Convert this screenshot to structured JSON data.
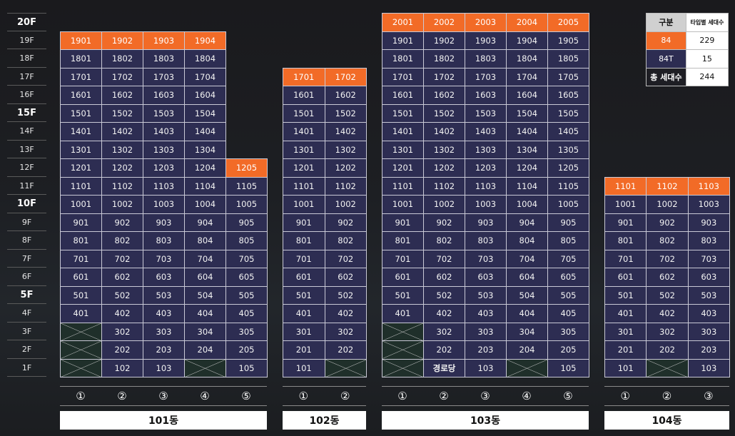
{
  "floors": [
    "20F",
    "19F",
    "18F",
    "17F",
    "16F",
    "15F",
    "14F",
    "13F",
    "12F",
    "11F",
    "10F",
    "9F",
    "8F",
    "7F",
    "6F",
    "5F",
    "4F",
    "3F",
    "2F",
    "1F"
  ],
  "major_floors": [
    "20F",
    "15F",
    "10F",
    "5F"
  ],
  "buildings": [
    {
      "id": "101",
      "name": "101동",
      "lines": [
        "①",
        "②",
        "③",
        "④",
        "⑤"
      ],
      "rows": [
        [
          [
            "1901",
            "top"
          ],
          [
            "1902",
            "top"
          ],
          [
            "1903",
            "top"
          ],
          [
            "1904",
            "top"
          ],
          null
        ],
        [
          [
            "1801"
          ],
          [
            "1802"
          ],
          [
            "1803"
          ],
          [
            "1804"
          ],
          null
        ],
        [
          [
            "1701"
          ],
          [
            "1702"
          ],
          [
            "1703"
          ],
          [
            "1704"
          ],
          null
        ],
        [
          [
            "1601"
          ],
          [
            "1602"
          ],
          [
            "1603"
          ],
          [
            "1604"
          ],
          null
        ],
        [
          [
            "1501"
          ],
          [
            "1502"
          ],
          [
            "1503"
          ],
          [
            "1504"
          ],
          null
        ],
        [
          [
            "1401"
          ],
          [
            "1402"
          ],
          [
            "1403"
          ],
          [
            "1404"
          ],
          null
        ],
        [
          [
            "1301"
          ],
          [
            "1302"
          ],
          [
            "1303"
          ],
          [
            "1304"
          ],
          null
        ],
        [
          [
            "1201"
          ],
          [
            "1202"
          ],
          [
            "1203"
          ],
          [
            "1204"
          ],
          [
            "1205",
            "top"
          ]
        ],
        [
          [
            "1101"
          ],
          [
            "1102"
          ],
          [
            "1103"
          ],
          [
            "1104"
          ],
          [
            "1105"
          ]
        ],
        [
          [
            "1001"
          ],
          [
            "1002"
          ],
          [
            "1003"
          ],
          [
            "1004"
          ],
          [
            "1005"
          ]
        ],
        [
          [
            "901"
          ],
          [
            "902"
          ],
          [
            "903"
          ],
          [
            "904"
          ],
          [
            "905"
          ]
        ],
        [
          [
            "801"
          ],
          [
            "802"
          ],
          [
            "803"
          ],
          [
            "804"
          ],
          [
            "805"
          ]
        ],
        [
          [
            "701"
          ],
          [
            "702"
          ],
          [
            "703"
          ],
          [
            "704"
          ],
          [
            "705"
          ]
        ],
        [
          [
            "601"
          ],
          [
            "602"
          ],
          [
            "603"
          ],
          [
            "604"
          ],
          [
            "605"
          ]
        ],
        [
          [
            "501"
          ],
          [
            "502"
          ],
          [
            "503"
          ],
          [
            "504"
          ],
          [
            "505"
          ]
        ],
        [
          [
            "401"
          ],
          [
            "402"
          ],
          [
            "403"
          ],
          [
            "404"
          ],
          [
            "405"
          ]
        ],
        [
          [
            "",
            "empty"
          ],
          [
            "302"
          ],
          [
            "303"
          ],
          [
            "304"
          ],
          [
            "305"
          ]
        ],
        [
          [
            "",
            "empty"
          ],
          [
            "202"
          ],
          [
            "203"
          ],
          [
            "204"
          ],
          [
            "205"
          ]
        ],
        [
          [
            "",
            "empty"
          ],
          [
            "102"
          ],
          [
            "103"
          ],
          [
            "",
            "empty"
          ],
          [
            "105"
          ]
        ]
      ]
    },
    {
      "id": "102",
      "name": "102동",
      "lines": [
        "①",
        "②"
      ],
      "rows": [
        [
          [
            "1701",
            "top"
          ],
          [
            "1702",
            "top"
          ]
        ],
        [
          [
            "1601"
          ],
          [
            "1602"
          ]
        ],
        [
          [
            "1501"
          ],
          [
            "1502"
          ]
        ],
        [
          [
            "1401"
          ],
          [
            "1402"
          ]
        ],
        [
          [
            "1301"
          ],
          [
            "1302"
          ]
        ],
        [
          [
            "1201"
          ],
          [
            "1202"
          ]
        ],
        [
          [
            "1101"
          ],
          [
            "1102"
          ]
        ],
        [
          [
            "1001"
          ],
          [
            "1002"
          ]
        ],
        [
          [
            "901"
          ],
          [
            "902"
          ]
        ],
        [
          [
            "801"
          ],
          [
            "802"
          ]
        ],
        [
          [
            "701"
          ],
          [
            "702"
          ]
        ],
        [
          [
            "601"
          ],
          [
            "602"
          ]
        ],
        [
          [
            "501"
          ],
          [
            "502"
          ]
        ],
        [
          [
            "401"
          ],
          [
            "402"
          ]
        ],
        [
          [
            "301"
          ],
          [
            "302"
          ]
        ],
        [
          [
            "201"
          ],
          [
            "202"
          ]
        ],
        [
          [
            "101"
          ],
          [
            "",
            "empty"
          ]
        ]
      ]
    },
    {
      "id": "103",
      "name": "103동",
      "lines": [
        "①",
        "②",
        "③",
        "④",
        "⑤"
      ],
      "rows": [
        [
          [
            "2001",
            "top"
          ],
          [
            "2002",
            "top"
          ],
          [
            "2003",
            "top"
          ],
          [
            "2004",
            "top"
          ],
          [
            "2005",
            "top"
          ]
        ],
        [
          [
            "1901"
          ],
          [
            "1902"
          ],
          [
            "1903"
          ],
          [
            "1904"
          ],
          [
            "1905"
          ]
        ],
        [
          [
            "1801"
          ],
          [
            "1802"
          ],
          [
            "1803"
          ],
          [
            "1804"
          ],
          [
            "1805"
          ]
        ],
        [
          [
            "1701"
          ],
          [
            "1702"
          ],
          [
            "1703"
          ],
          [
            "1704"
          ],
          [
            "1705"
          ]
        ],
        [
          [
            "1601"
          ],
          [
            "1602"
          ],
          [
            "1603"
          ],
          [
            "1604"
          ],
          [
            "1605"
          ]
        ],
        [
          [
            "1501"
          ],
          [
            "1502"
          ],
          [
            "1503"
          ],
          [
            "1504"
          ],
          [
            "1505"
          ]
        ],
        [
          [
            "1401"
          ],
          [
            "1402"
          ],
          [
            "1403"
          ],
          [
            "1404"
          ],
          [
            "1405"
          ]
        ],
        [
          [
            "1301"
          ],
          [
            "1302"
          ],
          [
            "1303"
          ],
          [
            "1304"
          ],
          [
            "1305"
          ]
        ],
        [
          [
            "1201"
          ],
          [
            "1202"
          ],
          [
            "1203"
          ],
          [
            "1204"
          ],
          [
            "1205"
          ]
        ],
        [
          [
            "1101"
          ],
          [
            "1102"
          ],
          [
            "1103"
          ],
          [
            "1104"
          ],
          [
            "1105"
          ]
        ],
        [
          [
            "1001"
          ],
          [
            "1002"
          ],
          [
            "1003"
          ],
          [
            "1004"
          ],
          [
            "1005"
          ]
        ],
        [
          [
            "901"
          ],
          [
            "902"
          ],
          [
            "903"
          ],
          [
            "904"
          ],
          [
            "905"
          ]
        ],
        [
          [
            "801"
          ],
          [
            "802"
          ],
          [
            "803"
          ],
          [
            "804"
          ],
          [
            "805"
          ]
        ],
        [
          [
            "701"
          ],
          [
            "702"
          ],
          [
            "703"
          ],
          [
            "704"
          ],
          [
            "705"
          ]
        ],
        [
          [
            "601"
          ],
          [
            "602"
          ],
          [
            "603"
          ],
          [
            "604"
          ],
          [
            "605"
          ]
        ],
        [
          [
            "501"
          ],
          [
            "502"
          ],
          [
            "503"
          ],
          [
            "504"
          ],
          [
            "505"
          ]
        ],
        [
          [
            "401"
          ],
          [
            "402"
          ],
          [
            "403"
          ],
          [
            "404"
          ],
          [
            "405"
          ]
        ],
        [
          [
            "",
            "empty"
          ],
          [
            "302"
          ],
          [
            "303"
          ],
          [
            "304"
          ],
          [
            "305"
          ]
        ],
        [
          [
            "",
            "empty"
          ],
          [
            "202"
          ],
          [
            "203"
          ],
          [
            "204"
          ],
          [
            "205"
          ]
        ],
        [
          [
            "",
            "empty"
          ],
          [
            "경로당",
            "special"
          ],
          [
            "103"
          ],
          [
            "",
            "empty"
          ],
          [
            "105"
          ]
        ]
      ]
    },
    {
      "id": "104",
      "name": "104동",
      "lines": [
        "①",
        "②",
        "③"
      ],
      "rows": [
        [
          [
            "1101",
            "top"
          ],
          [
            "1102",
            "top"
          ],
          [
            "1103",
            "top"
          ]
        ],
        [
          [
            "1001"
          ],
          [
            "1002"
          ],
          [
            "1003"
          ]
        ],
        [
          [
            "901"
          ],
          [
            "902"
          ],
          [
            "903"
          ]
        ],
        [
          [
            "801"
          ],
          [
            "802"
          ],
          [
            "803"
          ]
        ],
        [
          [
            "701"
          ],
          [
            "702"
          ],
          [
            "703"
          ]
        ],
        [
          [
            "601"
          ],
          [
            "602"
          ],
          [
            "603"
          ]
        ],
        [
          [
            "501"
          ],
          [
            "502"
          ],
          [
            "503"
          ]
        ],
        [
          [
            "401"
          ],
          [
            "402"
          ],
          [
            "403"
          ]
        ],
        [
          [
            "301"
          ],
          [
            "302"
          ],
          [
            "303"
          ]
        ],
        [
          [
            "201"
          ],
          [
            "202"
          ],
          [
            "203"
          ]
        ],
        [
          [
            "101"
          ],
          [
            "",
            "empty"
          ],
          [
            "103"
          ]
        ]
      ]
    }
  ],
  "legend": {
    "header_type": "구분",
    "header_count": "타입별 세대수",
    "rows": [
      {
        "type": "84",
        "count": "229",
        "style": "orange"
      },
      {
        "type": "84T",
        "count": "15",
        "style": "navy"
      },
      {
        "type": "총 세대수",
        "count": "244",
        "style": "dark"
      }
    ]
  },
  "colors": {
    "top_floor": "#f26b27",
    "unit": "#2d2d52",
    "empty": "#1f2f2a",
    "background": "#1c1e22"
  }
}
